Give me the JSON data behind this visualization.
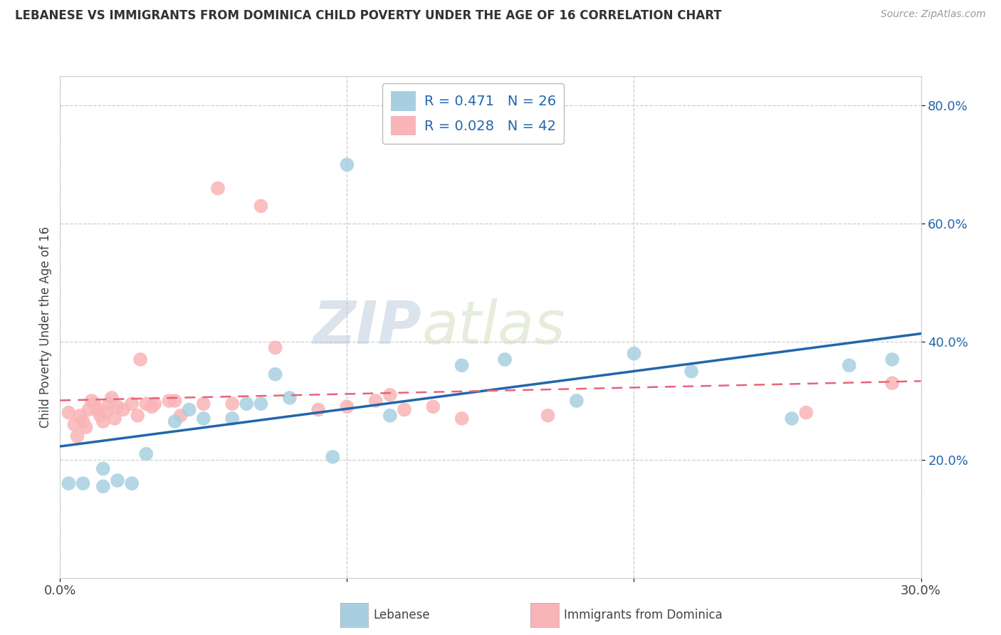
{
  "title": "LEBANESE VS IMMIGRANTS FROM DOMINICA CHILD POVERTY UNDER THE AGE OF 16 CORRELATION CHART",
  "source": "Source: ZipAtlas.com",
  "ylabel": "Child Poverty Under the Age of 16",
  "xlim": [
    0.0,
    0.3
  ],
  "ylim": [
    0.0,
    0.85
  ],
  "ytick_vals": [
    0.2,
    0.4,
    0.6,
    0.8
  ],
  "ytick_labels": [
    "20.0%",
    "40.0%",
    "60.0%",
    "80.0%"
  ],
  "xtick_vals": [
    0.0,
    0.1,
    0.2,
    0.3
  ],
  "xtick_labels": [
    "0.0%",
    "",
    "",
    "30.0%"
  ],
  "legend_r1": "R = 0.471   N = 26",
  "legend_r2": "R = 0.028   N = 42",
  "legend_label1": "Lebanese",
  "legend_label2": "Immigrants from Dominica",
  "blue_color": "#a8cfe0",
  "pink_color": "#f9b4b7",
  "blue_line_color": "#2166ac",
  "pink_line_color": "#e8637a",
  "watermark_zip": "ZIP",
  "watermark_atlas": "atlas",
  "bg_color": "#ffffff",
  "grid_color": "#c8c8c8",
  "blue_scatter_x": [
    0.003,
    0.008,
    0.015,
    0.015,
    0.02,
    0.025,
    0.03,
    0.04,
    0.045,
    0.05,
    0.06,
    0.065,
    0.07,
    0.075,
    0.08,
    0.095,
    0.1,
    0.115,
    0.14,
    0.155,
    0.18,
    0.2,
    0.22,
    0.255,
    0.275,
    0.29
  ],
  "blue_scatter_y": [
    0.16,
    0.16,
    0.185,
    0.155,
    0.165,
    0.16,
    0.21,
    0.265,
    0.285,
    0.27,
    0.27,
    0.295,
    0.295,
    0.345,
    0.305,
    0.205,
    0.7,
    0.275,
    0.36,
    0.37,
    0.3,
    0.38,
    0.35,
    0.27,
    0.36,
    0.37
  ],
  "pink_scatter_x": [
    0.003,
    0.005,
    0.006,
    0.007,
    0.008,
    0.009,
    0.01,
    0.011,
    0.012,
    0.013,
    0.014,
    0.015,
    0.016,
    0.017,
    0.018,
    0.019,
    0.02,
    0.022,
    0.025,
    0.027,
    0.028,
    0.03,
    0.032,
    0.033,
    0.038,
    0.04,
    0.042,
    0.05,
    0.055,
    0.06,
    0.07,
    0.075,
    0.09,
    0.1,
    0.11,
    0.115,
    0.12,
    0.13,
    0.14,
    0.17,
    0.26,
    0.29
  ],
  "pink_scatter_y": [
    0.28,
    0.26,
    0.24,
    0.275,
    0.265,
    0.255,
    0.285,
    0.3,
    0.295,
    0.285,
    0.275,
    0.265,
    0.28,
    0.295,
    0.305,
    0.27,
    0.29,
    0.285,
    0.295,
    0.275,
    0.37,
    0.295,
    0.29,
    0.295,
    0.3,
    0.3,
    0.275,
    0.295,
    0.66,
    0.295,
    0.63,
    0.39,
    0.285,
    0.29,
    0.3,
    0.31,
    0.285,
    0.29,
    0.27,
    0.275,
    0.28,
    0.33
  ]
}
